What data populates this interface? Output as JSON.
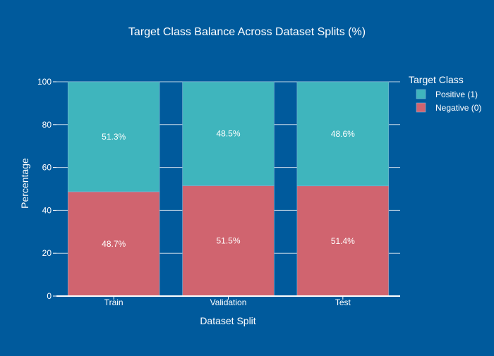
{
  "colors": {
    "background": "#005a9c",
    "positive": "#3fb5bd",
    "negative": "#d0646f",
    "text": "#ffffff",
    "grid": "#e6eef5"
  },
  "chart_data": {
    "type": "bar",
    "stacked": true,
    "title": "Target Class Balance Across Dataset Splits (%)",
    "xlabel": "Dataset Split",
    "ylabel": "Percentage",
    "ylim": [
      0,
      100
    ],
    "yticks": [
      0,
      20,
      40,
      60,
      80,
      100
    ],
    "ytick_labels": [
      "0",
      "20",
      "40",
      "60",
      "80",
      "100"
    ],
    "grid": true,
    "categories": [
      "Train",
      "Validation",
      "Test"
    ],
    "legend": {
      "title": "Target Class",
      "placement": "right"
    },
    "series": [
      {
        "name": "Negative (0)",
        "color": "#d0646f",
        "values": [
          48.7,
          51.5,
          51.4
        ],
        "labels": [
          "48.7%",
          "51.5%",
          "51.4%"
        ]
      },
      {
        "name": "Positive (1)",
        "color": "#3fb5bd",
        "values": [
          51.3,
          48.5,
          48.6
        ],
        "labels": [
          "51.3%",
          "48.5%",
          "48.6%"
        ]
      }
    ],
    "legend_order": [
      "Positive (1)",
      "Negative (0)"
    ]
  }
}
